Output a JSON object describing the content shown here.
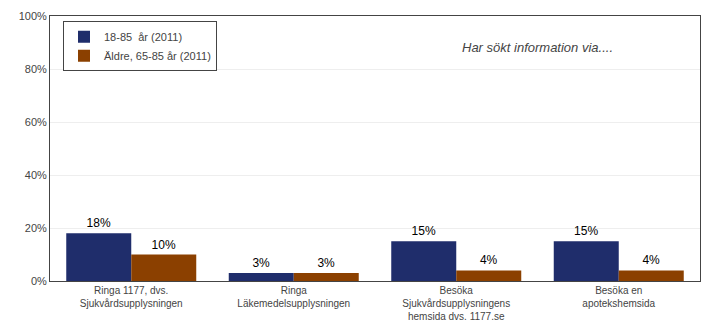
{
  "chart_data": {
    "type": "bar",
    "categories": [
      "Ringa 1177, dvs.\nSjukvårdsupplysningen",
      "Ringa\nLäkemedelsupplysningen",
      "Besöka\nSjukvårdsupplysningens\nhemsida dvs. 1177.se",
      "Besöka en\napotekshemsida"
    ],
    "series": [
      {
        "name": "18-85  år (2011)",
        "color": "#1F2D6B",
        "values": [
          18,
          3,
          15,
          15
        ],
        "value_labels": [
          "18%",
          "3%",
          "15%",
          "15%"
        ]
      },
      {
        "name": "Äldre, 65-85 år (2011)",
        "color": "#8B4000",
        "values": [
          10,
          3,
          4,
          4
        ],
        "value_labels": [
          "10%",
          "3%",
          "4%",
          "4%"
        ]
      }
    ],
    "ylim": [
      0,
      100
    ],
    "yticks": [
      {
        "value": 0,
        "label": "0%"
      },
      {
        "value": 20,
        "label": "20%"
      },
      {
        "value": 40,
        "label": "40%"
      },
      {
        "value": 60,
        "label": "60%"
      },
      {
        "value": 80,
        "label": "80%"
      },
      {
        "value": 100,
        "label": "100%"
      }
    ],
    "grid": true,
    "legend": "upper left",
    "data_labels": true,
    "annotations": [
      "Har sökt information via...."
    ]
  }
}
